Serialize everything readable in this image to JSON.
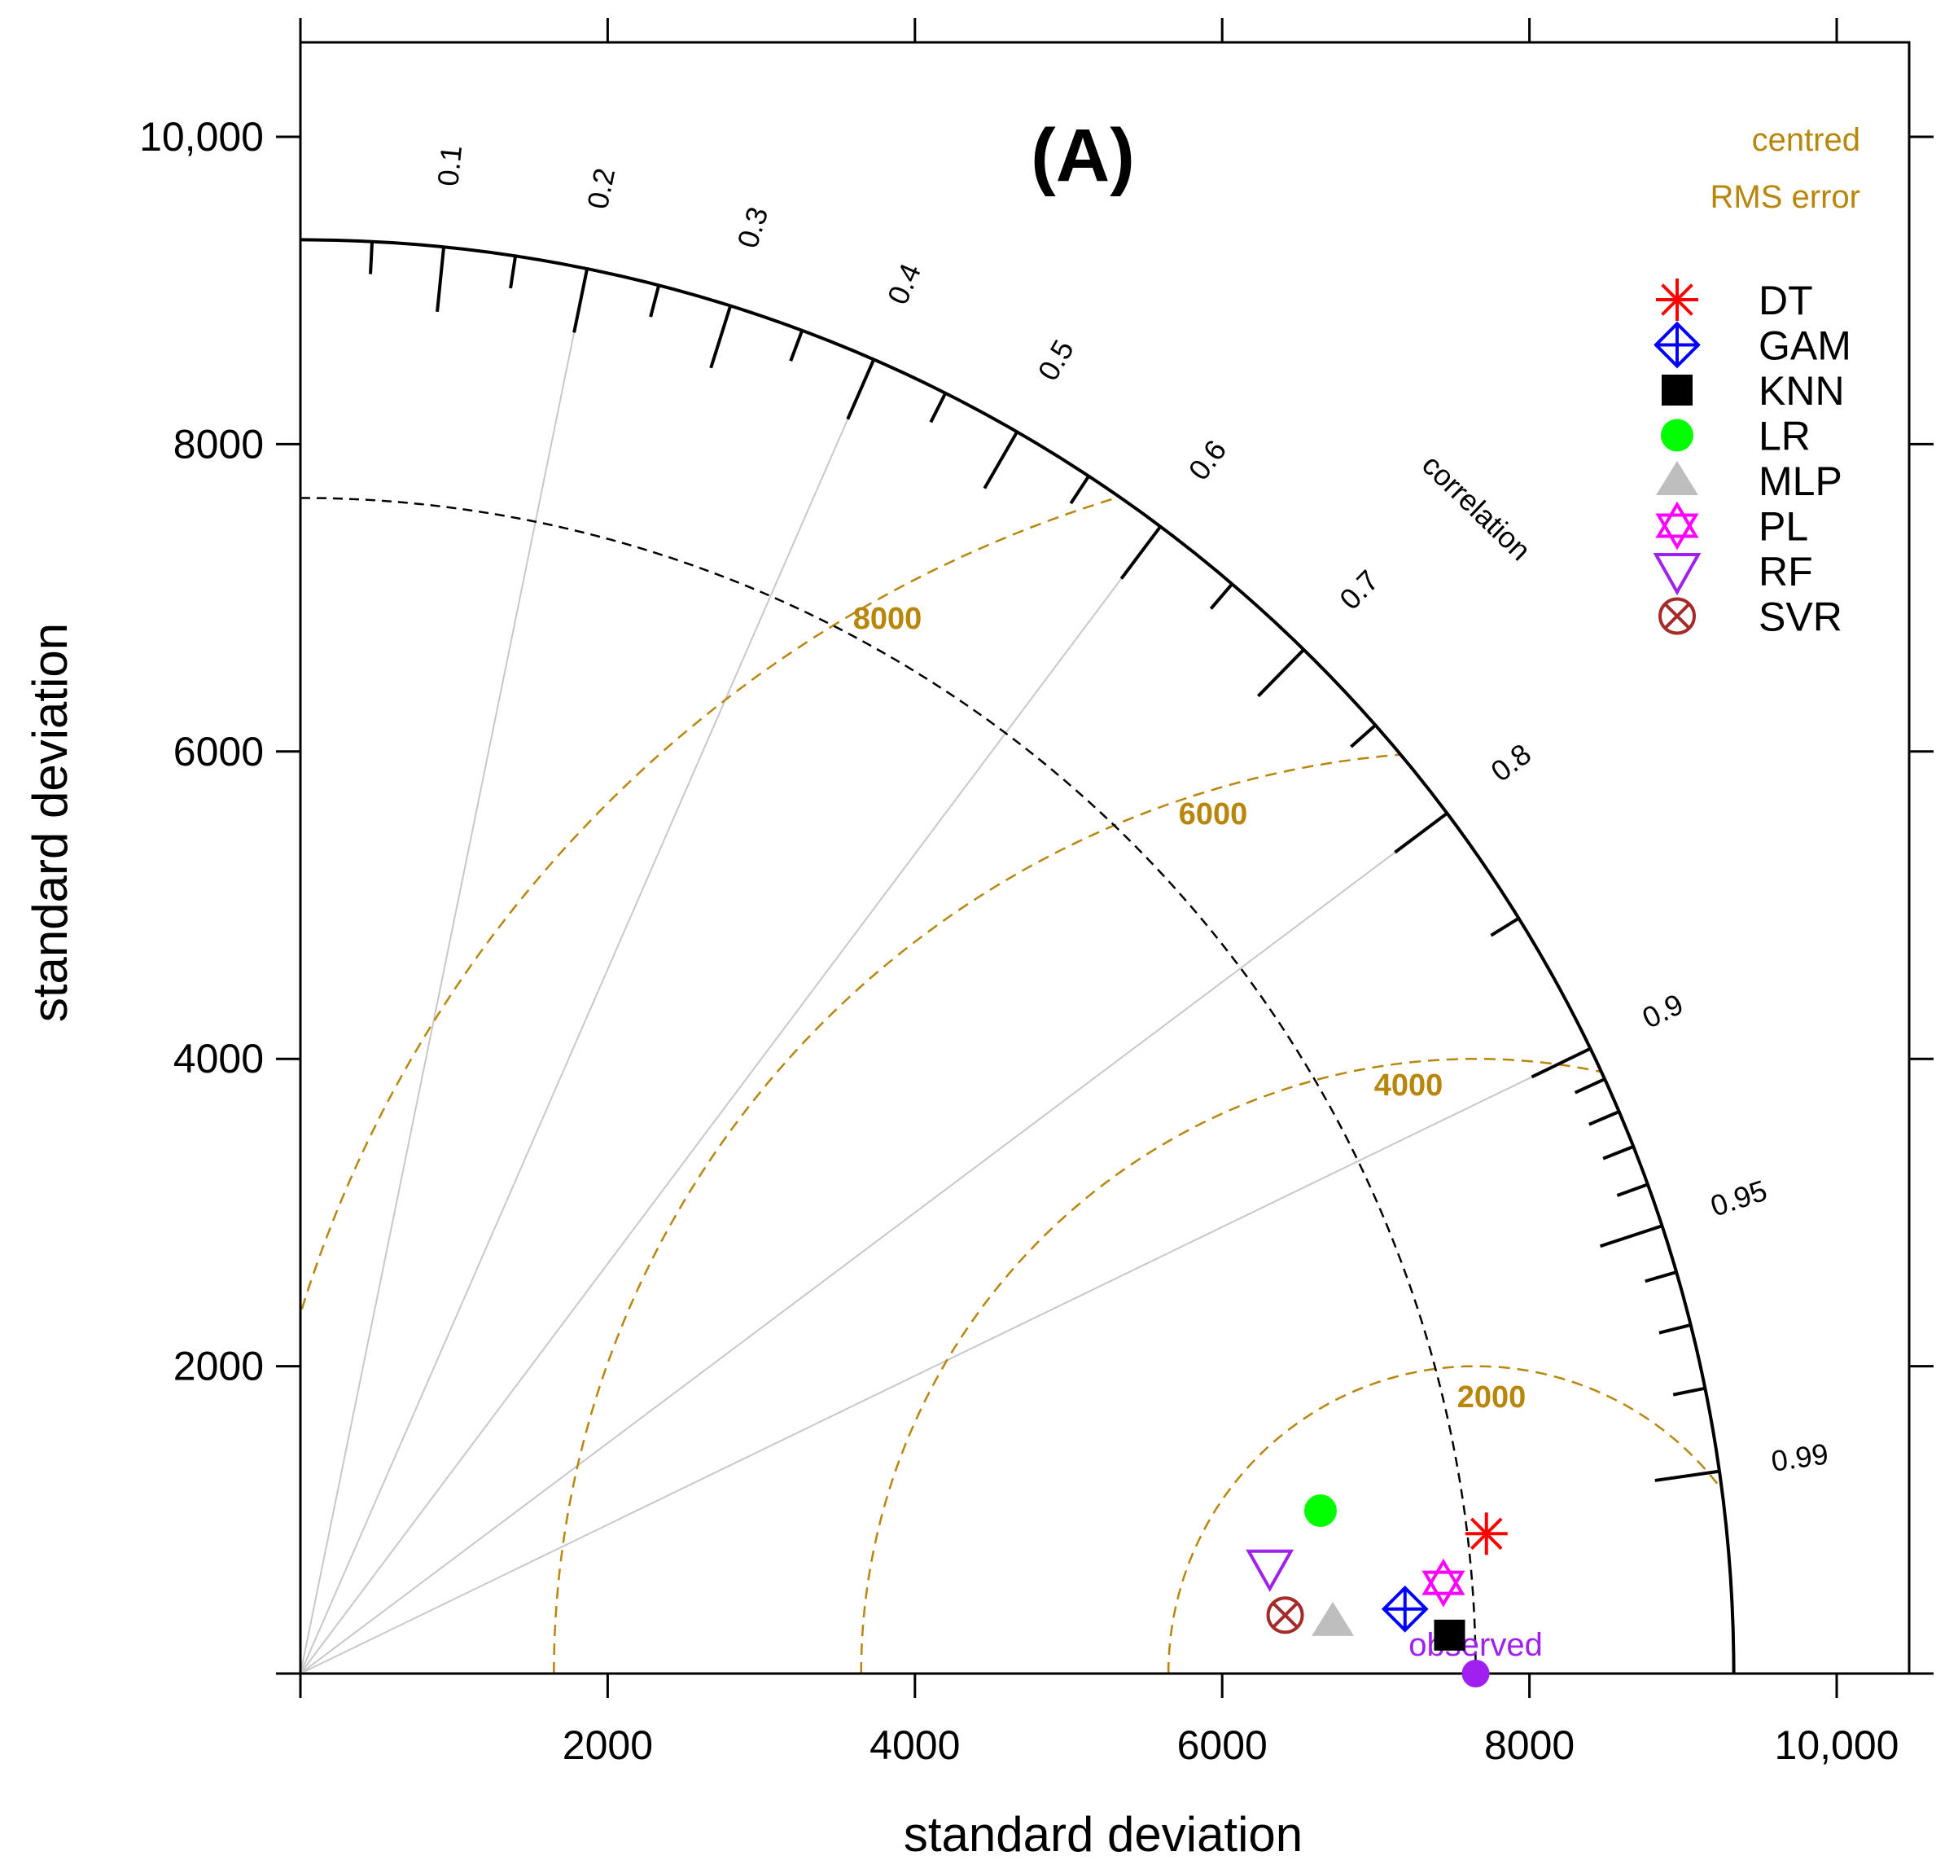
{
  "chart_data": {
    "type": "taylor-diagram",
    "panel_title": "(A)",
    "xlabel": "standard deviation",
    "ylabel": "standard deviation",
    "xlim": [
      0,
      10500
    ],
    "ylim": [
      0,
      10500
    ],
    "x_ticks": [
      2000,
      4000,
      6000,
      8000,
      10000
    ],
    "x_tick_labels": [
      "2000",
      "4000",
      "6000",
      "8000",
      "10,000"
    ],
    "y_ticks": [
      2000,
      4000,
      6000,
      8000,
      10000
    ],
    "y_tick_labels": [
      "2000",
      "4000",
      "6000",
      "8000",
      "10,000"
    ],
    "max_sd": 9330,
    "correlation_title": "correlation",
    "correlation_labels": [
      {
        "value": 0.1,
        "label": "0.1"
      },
      {
        "value": 0.2,
        "label": "0.2"
      },
      {
        "value": 0.3,
        "label": "0.3"
      },
      {
        "value": 0.4,
        "label": "0.4"
      },
      {
        "value": 0.5,
        "label": "0.5"
      },
      {
        "value": 0.6,
        "label": "0.6"
      },
      {
        "value": 0.7,
        "label": "0.7"
      },
      {
        "value": 0.8,
        "label": "0.8"
      },
      {
        "value": 0.9,
        "label": "0.9"
      },
      {
        "value": 0.95,
        "label": "0.95"
      },
      {
        "value": 0.99,
        "label": "0.99"
      }
    ],
    "correlation_gridlines": [
      0.2,
      0.4,
      0.6,
      0.8,
      0.9
    ],
    "rms_title_line1": "centred",
    "rms_title_line2": "RMS error",
    "rms_contours": [
      {
        "value": 2000,
        "label": "2000"
      },
      {
        "value": 4000,
        "label": "4000"
      },
      {
        "value": 6000,
        "label": "6000"
      },
      {
        "value": 8000,
        "label": "8000"
      }
    ],
    "observed": {
      "label": "observed",
      "sd": 7650,
      "color": "#A020F0"
    },
    "series": [
      {
        "name": "DT",
        "x": 7720,
        "y": 910,
        "marker": "asterisk",
        "color": "#FF0000"
      },
      {
        "name": "GAM",
        "x": 7190,
        "y": 420,
        "marker": "diamond-plus",
        "color": "#0000FF"
      },
      {
        "name": "KNN",
        "x": 7480,
        "y": 250,
        "marker": "square-filled",
        "color": "#000000"
      },
      {
        "name": "LR",
        "x": 6640,
        "y": 1060,
        "marker": "circle-filled",
        "color": "#00FF00"
      },
      {
        "name": "MLP",
        "x": 6720,
        "y": 340,
        "marker": "triangle-filled",
        "color": "#BEBEBE"
      },
      {
        "name": "PL",
        "x": 7440,
        "y": 590,
        "marker": "star-of-david",
        "color": "#FF00FF"
      },
      {
        "name": "RF",
        "x": 6310,
        "y": 690,
        "marker": "triangle-down",
        "color": "#A020F0"
      },
      {
        "name": "SVR",
        "x": 6410,
        "y": 380,
        "marker": "circle-x",
        "color": "#A52A2A"
      }
    ],
    "colors": {
      "rms": "#B8860B",
      "grid": "#C8C8C8",
      "axis": "#000000"
    }
  }
}
